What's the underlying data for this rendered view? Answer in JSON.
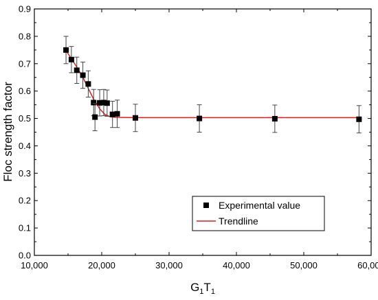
{
  "chart_data": {
    "type": "scatter",
    "title": "",
    "xlabel": {
      "main": "G",
      "sub1": "1",
      "mid": "T",
      "sub2": "1"
    },
    "ylabel": "Floc strength factor",
    "xlim": [
      10000,
      60000
    ],
    "ylim": [
      0.0,
      0.9
    ],
    "x_ticks": [
      10000,
      20000,
      30000,
      40000,
      50000,
      60000
    ],
    "x_tick_labels": [
      "10,000",
      "20,000",
      "30,000",
      "40,000",
      "50,000",
      "60,000"
    ],
    "y_ticks": [
      0.0,
      0.1,
      0.2,
      0.3,
      0.4,
      0.5,
      0.6,
      0.7,
      0.8,
      0.9
    ],
    "y_tick_labels": [
      "0.0",
      "0.1",
      "0.2",
      "0.3",
      "0.4",
      "0.5",
      "0.6",
      "0.7",
      "0.8",
      "0.9"
    ],
    "grid": false,
    "legend_position": "bottom-right",
    "series": [
      {
        "name": "Experimental value",
        "marker": "square",
        "color": "#000000",
        "points": [
          {
            "x": 14700,
            "y": 0.75,
            "err": 0.05
          },
          {
            "x": 15500,
            "y": 0.715,
            "err": 0.048
          },
          {
            "x": 16300,
            "y": 0.676,
            "err": 0.048
          },
          {
            "x": 17200,
            "y": 0.658,
            "err": 0.048
          },
          {
            "x": 18000,
            "y": 0.626,
            "err": 0.048
          },
          {
            "x": 18800,
            "y": 0.558,
            "err": 0.048
          },
          {
            "x": 19000,
            "y": 0.505,
            "err": 0.05
          },
          {
            "x": 19700,
            "y": 0.557,
            "err": 0.048
          },
          {
            "x": 20300,
            "y": 0.558,
            "err": 0.048
          },
          {
            "x": 20800,
            "y": 0.556,
            "err": 0.048
          },
          {
            "x": 21600,
            "y": 0.515,
            "err": 0.048
          },
          {
            "x": 22300,
            "y": 0.517,
            "err": 0.05
          },
          {
            "x": 25000,
            "y": 0.502,
            "err": 0.05
          },
          {
            "x": 34500,
            "y": 0.5,
            "err": 0.05
          },
          {
            "x": 45700,
            "y": 0.499,
            "err": 0.05
          },
          {
            "x": 58200,
            "y": 0.497,
            "err": 0.05
          }
        ]
      },
      {
        "name": "Trendline",
        "type": "line",
        "color": "#e41a1c",
        "points": [
          {
            "x": 14700,
            "y": 0.748
          },
          {
            "x": 15500,
            "y": 0.718
          },
          {
            "x": 16300,
            "y": 0.688
          },
          {
            "x": 17200,
            "y": 0.65
          },
          {
            "x": 18000,
            "y": 0.61
          },
          {
            "x": 18800,
            "y": 0.57
          },
          {
            "x": 19700,
            "y": 0.535
          },
          {
            "x": 20500,
            "y": 0.514
          },
          {
            "x": 21300,
            "y": 0.506
          },
          {
            "x": 22300,
            "y": 0.504
          },
          {
            "x": 25000,
            "y": 0.503
          },
          {
            "x": 34500,
            "y": 0.503
          },
          {
            "x": 45700,
            "y": 0.503
          },
          {
            "x": 58200,
            "y": 0.503
          }
        ]
      }
    ]
  }
}
